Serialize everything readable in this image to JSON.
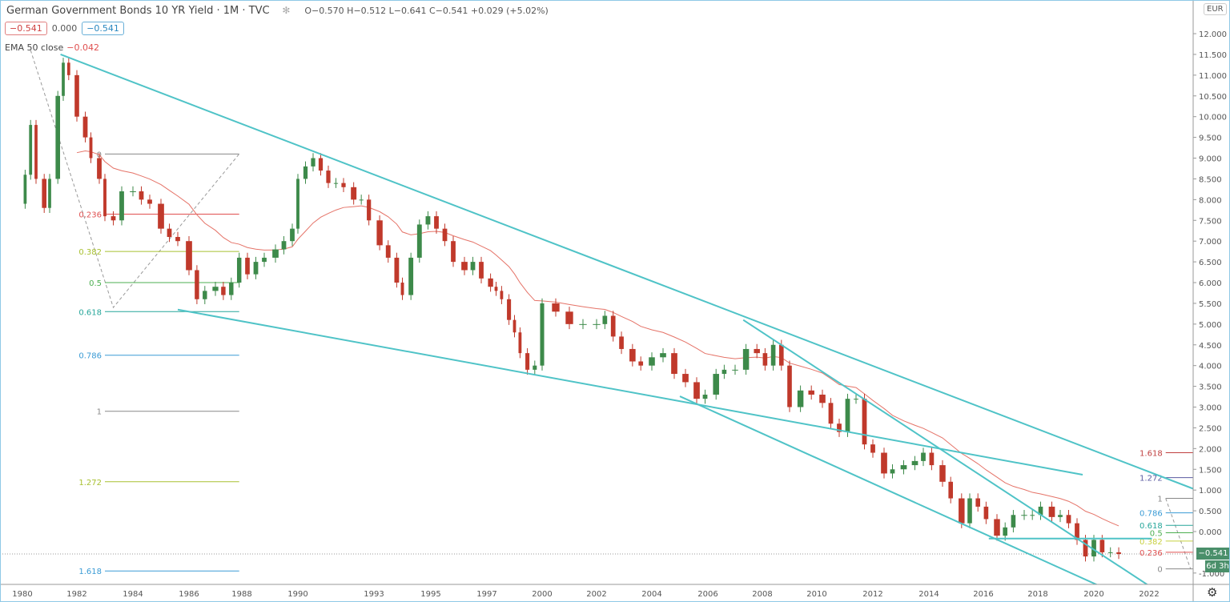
{
  "header": {
    "title": "German Government Bonds 10 YR Yield · 1M · TVC",
    "ohlc": "O−0.570 H−0.512 L−0.641 C−0.541 +0.029 (+5.02%)",
    "bid": "−0.541",
    "spread": "0.000",
    "ask": "−0.541",
    "ema_label": "EMA 50 close",
    "ema_value": "−0.042",
    "currency": "EUR",
    "price_badge": "−0.541",
    "time_badge": "6d 3h"
  },
  "chart_data": {
    "type": "candlestick",
    "title": "German Government Bonds 10 YR Yield · 1M · TVC",
    "ylim": [
      -1.3,
      12.6
    ],
    "y_ticks": [
      "12.000",
      "11.500",
      "11.000",
      "10.500",
      "10.000",
      "9.500",
      "9.000",
      "8.500",
      "8.000",
      "7.500",
      "7.000",
      "6.500",
      "6.000",
      "5.500",
      "5.000",
      "4.500",
      "4.000",
      "3.500",
      "3.000",
      "2.500",
      "2.000",
      "1.500",
      "1.000",
      "0.500",
      "0.000",
      "-1.000"
    ],
    "x_ticks": [
      "1980",
      "1982",
      "1984",
      "1986",
      "1988",
      "1990",
      "1993",
      "1995",
      "1997",
      "2000",
      "2002",
      "2004",
      "2006",
      "2008",
      "2010",
      "2012",
      "2014",
      "2016",
      "2018",
      "2020",
      "2022"
    ],
    "closes": [
      [
        1979.9,
        7.9
      ],
      [
        1980.1,
        8.6
      ],
      [
        1980.3,
        9.8
      ],
      [
        1980.5,
        8.5
      ],
      [
        1980.8,
        7.8
      ],
      [
        1981.0,
        8.5
      ],
      [
        1981.3,
        10.5
      ],
      [
        1981.5,
        11.3
      ],
      [
        1981.7,
        11.0
      ],
      [
        1982.0,
        10.0
      ],
      [
        1982.3,
        9.5
      ],
      [
        1982.5,
        9.0
      ],
      [
        1982.8,
        8.5
      ],
      [
        1983.0,
        7.6
      ],
      [
        1983.3,
        7.5
      ],
      [
        1983.6,
        8.2
      ],
      [
        1984.0,
        8.2
      ],
      [
        1984.3,
        8.0
      ],
      [
        1984.6,
        7.9
      ],
      [
        1985.0,
        7.3
      ],
      [
        1985.3,
        7.1
      ],
      [
        1985.6,
        7.0
      ],
      [
        1986.0,
        6.3
      ],
      [
        1986.3,
        5.6
      ],
      [
        1986.6,
        5.8
      ],
      [
        1987.0,
        5.9
      ],
      [
        1987.3,
        5.7
      ],
      [
        1987.6,
        6.0
      ],
      [
        1987.9,
        6.6
      ],
      [
        1988.2,
        6.2
      ],
      [
        1988.5,
        6.5
      ],
      [
        1988.8,
        6.6
      ],
      [
        1989.2,
        6.8
      ],
      [
        1989.5,
        7.0
      ],
      [
        1989.8,
        7.3
      ],
      [
        1990.0,
        8.5
      ],
      [
        1990.3,
        8.8
      ],
      [
        1990.6,
        9.0
      ],
      [
        1990.9,
        8.7
      ],
      [
        1991.2,
        8.4
      ],
      [
        1991.5,
        8.4
      ],
      [
        1991.8,
        8.3
      ],
      [
        1992.2,
        8.0
      ],
      [
        1992.5,
        8.0
      ],
      [
        1992.8,
        7.5
      ],
      [
        1993.2,
        6.9
      ],
      [
        1993.5,
        6.6
      ],
      [
        1993.8,
        6.0
      ],
      [
        1994.0,
        5.7
      ],
      [
        1994.3,
        6.6
      ],
      [
        1994.6,
        7.4
      ],
      [
        1994.9,
        7.6
      ],
      [
        1995.2,
        7.3
      ],
      [
        1995.5,
        7.0
      ],
      [
        1995.8,
        6.5
      ],
      [
        1996.2,
        6.3
      ],
      [
        1996.5,
        6.5
      ],
      [
        1996.8,
        6.1
      ],
      [
        1997.2,
        5.9
      ],
      [
        1997.5,
        5.8
      ],
      [
        1997.8,
        5.6
      ],
      [
        1998.2,
        5.1
      ],
      [
        1998.5,
        4.8
      ],
      [
        1998.8,
        4.3
      ],
      [
        1999.2,
        3.9
      ],
      [
        1999.6,
        4.0
      ],
      [
        2000.0,
        5.5
      ],
      [
        2000.5,
        5.3
      ],
      [
        2001.0,
        5.0
      ],
      [
        2001.5,
        5.0
      ],
      [
        2002.0,
        5.0
      ],
      [
        2002.3,
        5.2
      ],
      [
        2002.6,
        4.7
      ],
      [
        2002.9,
        4.4
      ],
      [
        2003.3,
        4.1
      ],
      [
        2003.6,
        4.0
      ],
      [
        2004.0,
        4.2
      ],
      [
        2004.4,
        4.3
      ],
      [
        2004.8,
        3.8
      ],
      [
        2005.2,
        3.6
      ],
      [
        2005.6,
        3.2
      ],
      [
        2005.9,
        3.3
      ],
      [
        2006.3,
        3.8
      ],
      [
        2006.6,
        3.9
      ],
      [
        2007.0,
        3.9
      ],
      [
        2007.4,
        4.4
      ],
      [
        2007.8,
        4.3
      ],
      [
        2008.1,
        4.0
      ],
      [
        2008.4,
        4.5
      ],
      [
        2008.7,
        4.0
      ],
      [
        2009.0,
        3.0
      ],
      [
        2009.4,
        3.4
      ],
      [
        2009.8,
        3.3
      ],
      [
        2010.2,
        3.1
      ],
      [
        2010.5,
        2.6
      ],
      [
        2010.8,
        2.4
      ],
      [
        2011.1,
        3.2
      ],
      [
        2011.4,
        3.2
      ],
      [
        2011.7,
        2.1
      ],
      [
        2012.0,
        1.9
      ],
      [
        2012.4,
        1.4
      ],
      [
        2012.7,
        1.5
      ],
      [
        2013.1,
        1.6
      ],
      [
        2013.5,
        1.7
      ],
      [
        2013.8,
        1.9
      ],
      [
        2014.1,
        1.6
      ],
      [
        2014.5,
        1.2
      ],
      [
        2014.8,
        0.8
      ],
      [
        2015.2,
        0.2
      ],
      [
        2015.5,
        0.8
      ],
      [
        2015.8,
        0.6
      ],
      [
        2016.1,
        0.3
      ],
      [
        2016.5,
        -0.1
      ],
      [
        2016.8,
        0.1
      ],
      [
        2017.1,
        0.4
      ],
      [
        2017.5,
        0.4
      ],
      [
        2017.8,
        0.4
      ],
      [
        2018.1,
        0.6
      ],
      [
        2018.5,
        0.35
      ],
      [
        2018.8,
        0.4
      ],
      [
        2019.1,
        0.2
      ],
      [
        2019.4,
        -0.2
      ],
      [
        2019.7,
        -0.6
      ],
      [
        2020.0,
        -0.2
      ],
      [
        2020.3,
        -0.5
      ],
      [
        2020.6,
        -0.5
      ],
      [
        2020.9,
        -0.541
      ]
    ],
    "ema_period": 50,
    "trendlines": [
      {
        "from": [
          1981.4,
          11.5
        ],
        "to": [
          2024.7,
          0.75
        ]
      },
      {
        "from": [
          1985.6,
          5.35
        ],
        "to": [
          2019.6,
          1.37
        ]
      },
      {
        "from": [
          2007.3,
          5.1
        ],
        "to": [
          2022.9,
          -1.7
        ]
      },
      {
        "from": [
          2005.0,
          3.26
        ],
        "to": [
          2021.5,
          -1.7
        ]
      },
      {
        "from": [
          2016.2,
          -0.17
        ],
        "to": [
          2022.1,
          -0.17
        ]
      }
    ],
    "fib_left": {
      "x_range": [
        1983.0,
        1987.9
      ],
      "dashed": [
        [
          1980.3,
          11.6
        ],
        [
          1983.3,
          5.4
        ],
        [
          1987.9,
          9.1
        ]
      ],
      "levels": [
        {
          "label": "0",
          "value": 9.1,
          "color": "#888888"
        },
        {
          "label": "0.236",
          "value": 7.65,
          "color": "#e05050"
        },
        {
          "label": "0.382",
          "value": 6.75,
          "color": "#a8c030"
        },
        {
          "label": "0.5",
          "value": 6.0,
          "color": "#4caf50"
        },
        {
          "label": "0.618",
          "value": 5.3,
          "color": "#26a69a"
        },
        {
          "label": "0.786",
          "value": 4.25,
          "color": "#3a9bd5"
        },
        {
          "label": "1",
          "value": 2.9,
          "color": "#888888"
        },
        {
          "label": "1.272",
          "value": 1.2,
          "color": "#a8c030"
        },
        {
          "label": "1.618",
          "value": -0.95,
          "color": "#3a9bd5"
        }
      ]
    },
    "fib_right": {
      "x_range": [
        2022.6,
        2023.6
      ],
      "dashed": [
        [
          2022.6,
          0.8
        ],
        [
          2023.5,
          -0.9
        ]
      ],
      "levels": [
        {
          "label": "1.618",
          "value": 1.9,
          "color": "#c04040"
        },
        {
          "label": "1.272",
          "value": 1.3,
          "color": "#5a5aa0"
        },
        {
          "label": "1",
          "value": 0.8,
          "color": "#888888"
        },
        {
          "label": "0.786",
          "value": 0.45,
          "color": "#3a9bd5"
        },
        {
          "label": "0.618",
          "value": 0.15,
          "color": "#26a69a"
        },
        {
          "label": "0.5",
          "value": -0.03,
          "color": "#4caf50"
        },
        {
          "label": "0.382",
          "value": -0.23,
          "color": "#c8d040"
        },
        {
          "label": "0.236",
          "value": -0.5,
          "color": "#e05050"
        },
        {
          "label": "0",
          "value": -0.9,
          "color": "#888888"
        }
      ]
    },
    "colors": {
      "up": "#3d8a4a",
      "down": "#c0392b",
      "ema": "#e57368",
      "trend": "#4fc3c7"
    }
  }
}
